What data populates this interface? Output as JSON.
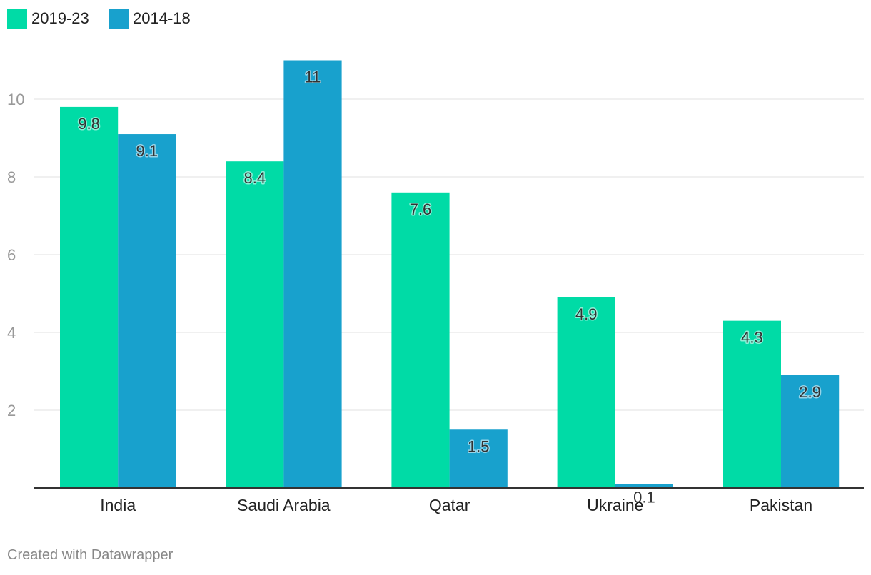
{
  "chart_data": {
    "type": "bar",
    "title": "",
    "xlabel": "",
    "ylabel": "",
    "categories": [
      "India",
      "Saudi Arabia",
      "Qatar",
      "Ukraine",
      "Pakistan"
    ],
    "series": [
      {
        "name": "2019-23",
        "color": "#00dba6",
        "values": [
          9.8,
          8.4,
          7.6,
          4.9,
          4.3
        ],
        "labels": [
          "9.8",
          "8.4",
          "7.6",
          "4.9",
          "4.3"
        ]
      },
      {
        "name": "2014-18",
        "color": "#18a1cd",
        "values": [
          9.1,
          11,
          1.5,
          0.1,
          2.9
        ],
        "labels": [
          "9.1",
          "11",
          "1.5",
          "0.1",
          "2.9"
        ]
      }
    ],
    "y_ticks": [
      2,
      4,
      6,
      8,
      10
    ],
    "y_tick_labels": [
      "2",
      "4",
      "6",
      "8",
      "10"
    ],
    "ylim": [
      0,
      11
    ],
    "grid": true,
    "legend": "top-left"
  },
  "footer": {
    "credit": "Created with Datawrapper"
  }
}
